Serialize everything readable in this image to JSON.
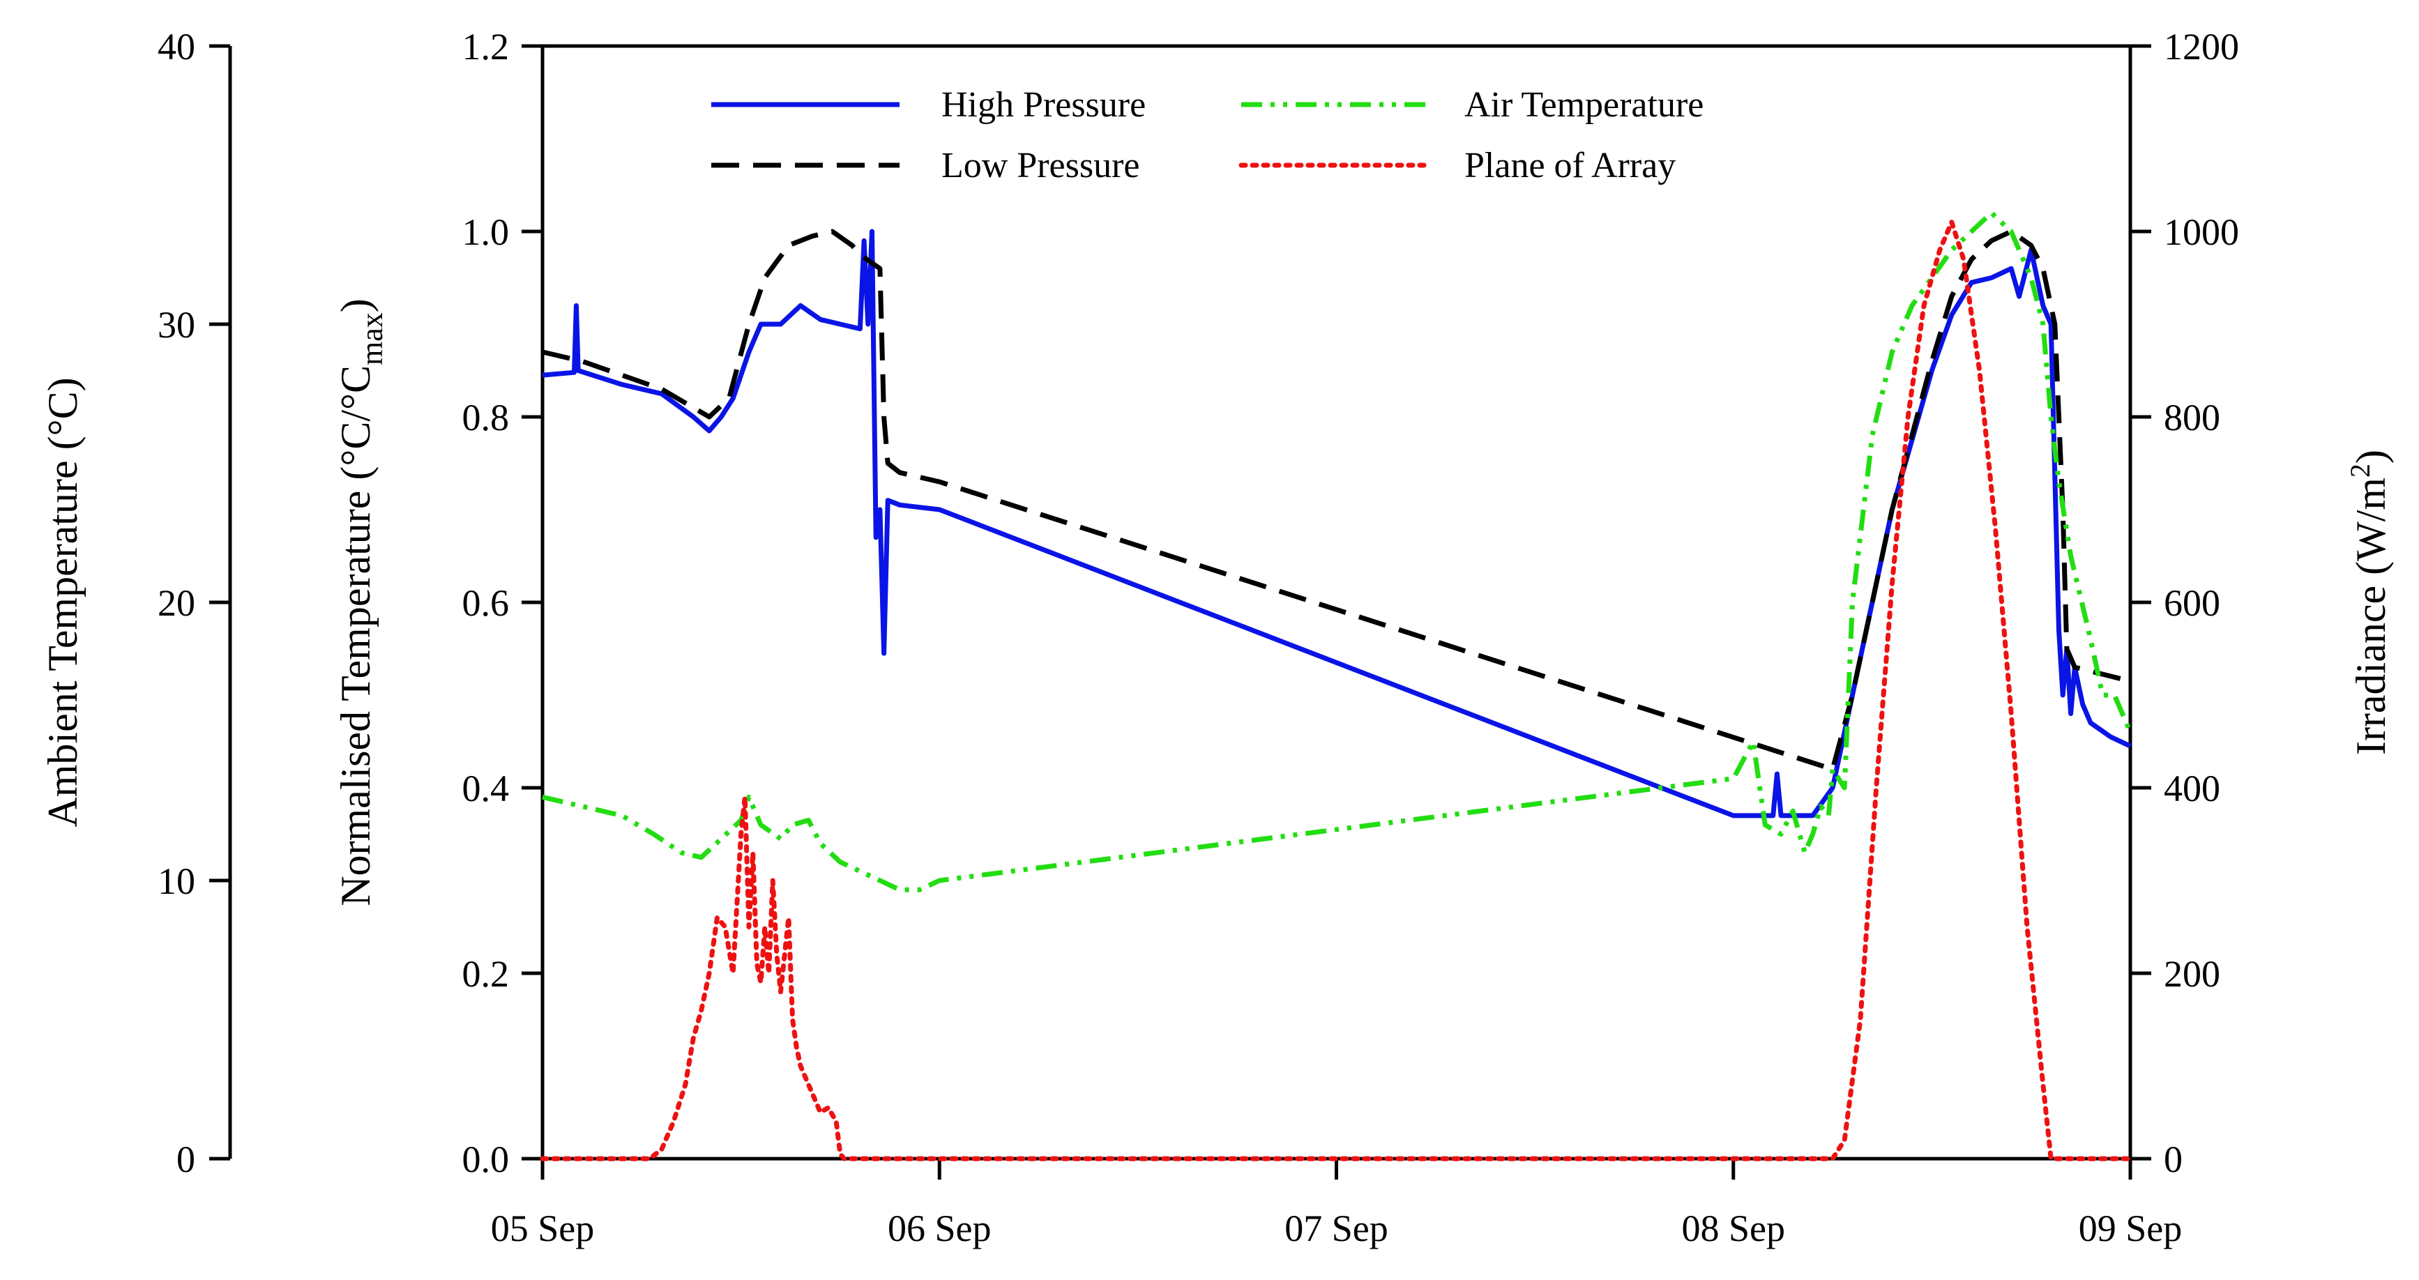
{
  "chart_data": {
    "type": "line",
    "x_ticks": [
      "05 Sep",
      "06 Sep",
      "07 Sep",
      "08 Sep",
      "09 Sep"
    ],
    "xlim": [
      0,
      4
    ],
    "axes": {
      "left_outer": {
        "label": "Ambient Temperature (°C)",
        "lim": [
          0,
          40
        ],
        "ticks": [
          0,
          10,
          20,
          30,
          40
        ],
        "tick_labels": [
          "0",
          "10",
          "20",
          "30",
          "40"
        ]
      },
      "left_inner": {
        "label_main": "Normalised Temperature (°C/°C",
        "label_sub": "max",
        "label_end": ")",
        "lim": [
          0,
          1.2
        ],
        "ticks": [
          0,
          0.2,
          0.4,
          0.6,
          0.8,
          1.0,
          1.2
        ],
        "tick_labels": [
          "0.0",
          "0.2",
          "0.4",
          "0.6",
          "0.8",
          "1.0",
          "1.2"
        ]
      },
      "right": {
        "label_main": "Irradiance (W/m",
        "label_sup": "2",
        "label_end": ")",
        "lim": [
          0,
          1200
        ],
        "ticks": [
          0,
          200,
          400,
          600,
          800,
          1000,
          1200
        ],
        "tick_labels": [
          "0",
          "200",
          "400",
          "600",
          "800",
          "1000",
          "1200"
        ]
      }
    },
    "legend": [
      {
        "name": "High Pressure",
        "color": "#0a14e6",
        "dash": "solid"
      },
      {
        "name": "Low Pressure",
        "color": "#000000",
        "dash": "dashed"
      },
      {
        "name": "Air Temperature",
        "color": "#22dd11",
        "dash": "dashdotdot"
      },
      {
        "name": "Plane of Array",
        "color": "#ee1111",
        "dash": "dotted"
      }
    ],
    "series": [
      {
        "name": "High Pressure",
        "axis": "left_inner",
        "color": "#0a14e6",
        "points": [
          [
            0,
            0.845
          ],
          [
            0.08,
            0.848
          ],
          [
            0.085,
            0.92
          ],
          [
            0.09,
            0.85
          ],
          [
            0.2,
            0.835
          ],
          [
            0.3,
            0.825
          ],
          [
            0.38,
            0.8
          ],
          [
            0.42,
            0.785
          ],
          [
            0.45,
            0.8
          ],
          [
            0.48,
            0.82
          ],
          [
            0.52,
            0.87
          ],
          [
            0.55,
            0.9
          ],
          [
            0.6,
            0.9
          ],
          [
            0.65,
            0.92
          ],
          [
            0.7,
            0.905
          ],
          [
            0.75,
            0.9
          ],
          [
            0.8,
            0.895
          ],
          [
            0.81,
            0.99
          ],
          [
            0.82,
            0.9
          ],
          [
            0.83,
            1.0
          ],
          [
            0.84,
            0.67
          ],
          [
            0.85,
            0.7
          ],
          [
            0.86,
            0.545
          ],
          [
            0.87,
            0.71
          ],
          [
            0.9,
            0.705
          ],
          [
            1.0,
            0.7
          ],
          [
            3.0,
            0.37
          ],
          [
            3.1,
            0.37
          ],
          [
            3.11,
            0.415
          ],
          [
            3.12,
            0.37
          ],
          [
            3.2,
            0.37
          ],
          [
            3.25,
            0.4
          ],
          [
            3.3,
            0.5
          ],
          [
            3.4,
            0.7
          ],
          [
            3.5,
            0.85
          ],
          [
            3.55,
            0.91
          ],
          [
            3.6,
            0.945
          ],
          [
            3.65,
            0.95
          ],
          [
            3.7,
            0.96
          ],
          [
            3.72,
            0.93
          ],
          [
            3.75,
            0.98
          ],
          [
            3.78,
            0.92
          ],
          [
            3.8,
            0.9
          ],
          [
            3.82,
            0.57
          ],
          [
            3.83,
            0.5
          ],
          [
            3.84,
            0.55
          ],
          [
            3.85,
            0.48
          ],
          [
            3.86,
            0.53
          ],
          [
            3.88,
            0.49
          ],
          [
            3.9,
            0.47
          ],
          [
            3.95,
            0.455
          ],
          [
            4.0,
            0.445
          ]
        ]
      },
      {
        "name": "Low Pressure",
        "axis": "left_inner",
        "color": "#000000",
        "points": [
          [
            0,
            0.87
          ],
          [
            0.1,
            0.86
          ],
          [
            0.2,
            0.845
          ],
          [
            0.3,
            0.83
          ],
          [
            0.38,
            0.81
          ],
          [
            0.42,
            0.8
          ],
          [
            0.47,
            0.82
          ],
          [
            0.52,
            0.9
          ],
          [
            0.56,
            0.95
          ],
          [
            0.62,
            0.985
          ],
          [
            0.68,
            0.995
          ],
          [
            0.73,
            1.0
          ],
          [
            0.78,
            0.985
          ],
          [
            0.8,
            0.975
          ],
          [
            0.85,
            0.96
          ],
          [
            0.86,
            0.8
          ],
          [
            0.87,
            0.75
          ],
          [
            0.9,
            0.74
          ],
          [
            1.0,
            0.73
          ],
          [
            3.25,
            0.42
          ],
          [
            3.3,
            0.5
          ],
          [
            3.4,
            0.7
          ],
          [
            3.5,
            0.86
          ],
          [
            3.55,
            0.93
          ],
          [
            3.6,
            0.97
          ],
          [
            3.65,
            0.99
          ],
          [
            3.7,
            1.0
          ],
          [
            3.75,
            0.985
          ],
          [
            3.78,
            0.96
          ],
          [
            3.81,
            0.9
          ],
          [
            3.83,
            0.7
          ],
          [
            3.84,
            0.55
          ],
          [
            3.86,
            0.53
          ],
          [
            4.0,
            0.515
          ]
        ]
      },
      {
        "name": "Air Temperature",
        "axis": "left_inner",
        "color": "#22dd11",
        "points": [
          [
            0,
            0.39
          ],
          [
            0.1,
            0.38
          ],
          [
            0.2,
            0.37
          ],
          [
            0.28,
            0.35
          ],
          [
            0.35,
            0.33
          ],
          [
            0.4,
            0.325
          ],
          [
            0.45,
            0.345
          ],
          [
            0.5,
            0.365
          ],
          [
            0.52,
            0.39
          ],
          [
            0.55,
            0.36
          ],
          [
            0.6,
            0.345
          ],
          [
            0.63,
            0.36
          ],
          [
            0.67,
            0.365
          ],
          [
            0.7,
            0.34
          ],
          [
            0.75,
            0.32
          ],
          [
            0.8,
            0.31
          ],
          [
            0.85,
            0.3
          ],
          [
            0.9,
            0.29
          ],
          [
            0.95,
            0.29
          ],
          [
            1.0,
            0.3
          ],
          [
            3.0,
            0.41
          ],
          [
            3.05,
            0.45
          ],
          [
            3.08,
            0.36
          ],
          [
            3.12,
            0.35
          ],
          [
            3.15,
            0.375
          ],
          [
            3.18,
            0.33
          ],
          [
            3.2,
            0.35
          ],
          [
            3.22,
            0.38
          ],
          [
            3.24,
            0.37
          ],
          [
            3.25,
            0.42
          ],
          [
            3.28,
            0.4
          ],
          [
            3.3,
            0.6
          ],
          [
            3.35,
            0.78
          ],
          [
            3.4,
            0.87
          ],
          [
            3.45,
            0.92
          ],
          [
            3.5,
            0.95
          ],
          [
            3.55,
            0.98
          ],
          [
            3.6,
            1.0
          ],
          [
            3.65,
            1.02
          ],
          [
            3.7,
            1.0
          ],
          [
            3.75,
            0.95
          ],
          [
            3.78,
            0.9
          ],
          [
            3.8,
            0.8
          ],
          [
            3.82,
            0.73
          ],
          [
            3.85,
            0.65
          ],
          [
            3.9,
            0.56
          ],
          [
            3.93,
            0.5
          ],
          [
            3.96,
            0.5
          ],
          [
            4.0,
            0.46
          ]
        ]
      },
      {
        "name": "Plane of Array",
        "axis": "right",
        "color": "#ee1111",
        "points": [
          [
            0,
            0
          ],
          [
            0.27,
            0
          ],
          [
            0.3,
            10
          ],
          [
            0.33,
            40
          ],
          [
            0.36,
            80
          ],
          [
            0.38,
            130
          ],
          [
            0.4,
            160
          ],
          [
            0.42,
            200
          ],
          [
            0.44,
            260
          ],
          [
            0.46,
            250
          ],
          [
            0.48,
            200
          ],
          [
            0.5,
            350
          ],
          [
            0.51,
            390
          ],
          [
            0.52,
            250
          ],
          [
            0.53,
            330
          ],
          [
            0.54,
            210
          ],
          [
            0.55,
            190
          ],
          [
            0.56,
            250
          ],
          [
            0.57,
            200
          ],
          [
            0.58,
            300
          ],
          [
            0.59,
            220
          ],
          [
            0.6,
            180
          ],
          [
            0.62,
            260
          ],
          [
            0.63,
            150
          ],
          [
            0.64,
            120
          ],
          [
            0.65,
            100
          ],
          [
            0.66,
            90
          ],
          [
            0.68,
            70
          ],
          [
            0.7,
            50
          ],
          [
            0.72,
            55
          ],
          [
            0.74,
            40
          ],
          [
            0.75,
            5
          ],
          [
            0.76,
            0
          ],
          [
            3.25,
            0
          ],
          [
            3.28,
            20
          ],
          [
            3.32,
            150
          ],
          [
            3.36,
            400
          ],
          [
            3.4,
            620
          ],
          [
            3.44,
            800
          ],
          [
            3.48,
            920
          ],
          [
            3.52,
            980
          ],
          [
            3.55,
            1010
          ],
          [
            3.58,
            970
          ],
          [
            3.62,
            850
          ],
          [
            3.66,
            680
          ],
          [
            3.7,
            480
          ],
          [
            3.74,
            250
          ],
          [
            3.78,
            80
          ],
          [
            3.8,
            0
          ],
          [
            4.0,
            0
          ]
        ]
      }
    ]
  }
}
